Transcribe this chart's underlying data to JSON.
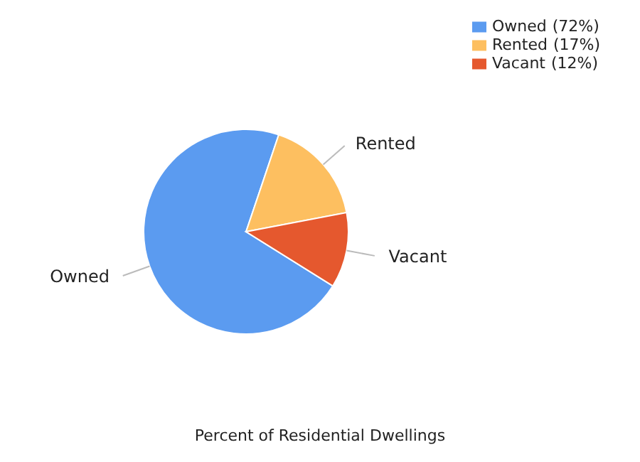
{
  "chart_data": {
    "type": "pie",
    "title": "Percent of Residential Dwellings",
    "categories": [
      "Owned",
      "Rented",
      "Vacant"
    ],
    "values": [
      72,
      17,
      12
    ],
    "value_labels": [
      "(72%)",
      "(17%)",
      "(12%)"
    ],
    "colors": [
      "#5b9bf0",
      "#fdbf60",
      "#e5582e"
    ],
    "legend": "top right"
  }
}
